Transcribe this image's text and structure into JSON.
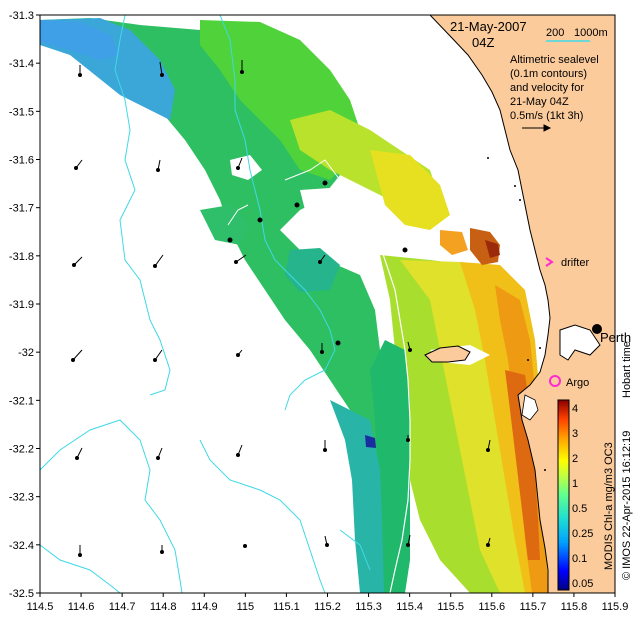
{
  "map": {
    "lon_range": [
      114.5,
      115.9
    ],
    "lat_range": [
      -32.5,
      -31.3
    ],
    "x_ticks": [
      "114.5",
      "114.6",
      "114.7",
      "114.8",
      "114.9",
      "115",
      "115.1",
      "115.2",
      "115.3",
      "115.4",
      "115.5",
      "115.6",
      "115.7",
      "115.8",
      "115.9"
    ],
    "y_ticks": [
      "-31.3",
      "-31.4",
      "-31.5",
      "-31.6",
      "-31.7",
      "-31.8",
      "-31.9",
      "-32",
      "-32.1",
      "-32.2",
      "-32.3",
      "-32.4",
      "-32.5"
    ],
    "land_color": "#fbcb9c",
    "contour_color": "#3fd9e6"
  },
  "header": {
    "date": "21-May-2007",
    "time": "04Z",
    "scale_200": "200",
    "scale_1000": "1000m"
  },
  "legend": {
    "line1": "Altimetric sealevel",
    "line2": "(0.1m contours)",
    "line3": "and velocity for",
    "line4": "21-May 04Z",
    "line5": "0.5m/s (1kt 3h)"
  },
  "labels": {
    "drifter": "drifter",
    "perth": "Perth",
    "argo": "Argo",
    "hobart_time": "Hobart time",
    "credit": "© IMOS 22-Apr-2015 16:12:19",
    "colorbar_title": "MODIS Chl-a mg/m3 OC3"
  },
  "colorbar": {
    "ticks": [
      "0.05",
      "0.1",
      "0.25",
      "0.5",
      "1",
      "2",
      "3",
      "4"
    ],
    "colors": [
      "#00007f",
      "#0000d6",
      "#0040ff",
      "#00a0ff",
      "#18e0e0",
      "#40ffc0",
      "#7fff7f",
      "#c0ff40",
      "#ffff00",
      "#ffc000",
      "#ff8000",
      "#ff4000",
      "#d00000",
      "#7f0000"
    ]
  }
}
